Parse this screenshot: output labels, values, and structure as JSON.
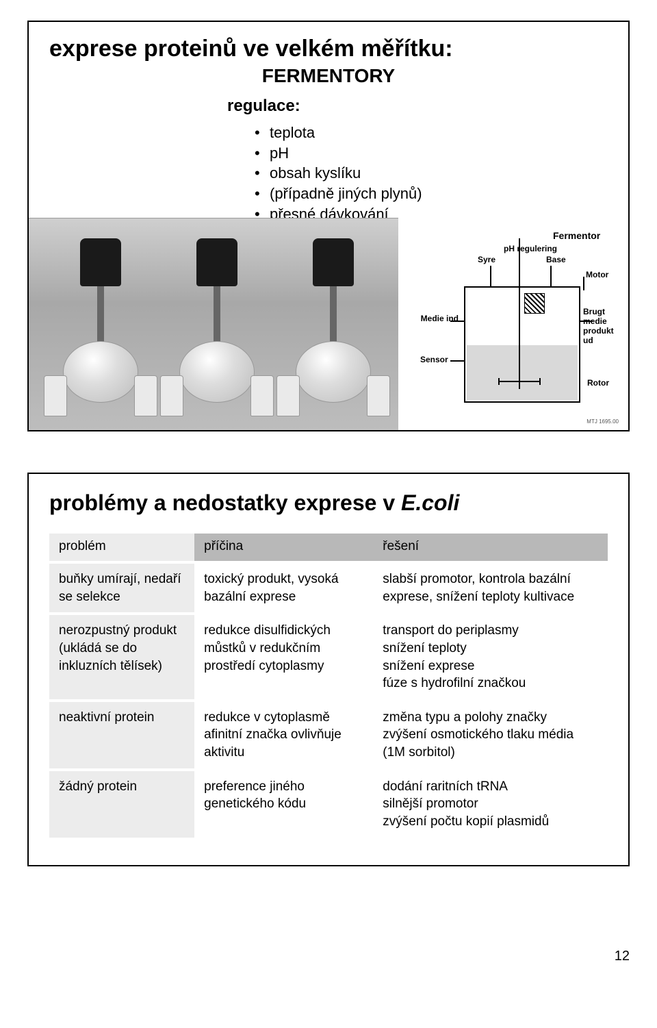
{
  "panel1": {
    "title": "exprese proteinů ve velkém měřítku:",
    "subtitle": "FERMENTORY",
    "regulace_label": "regulace:",
    "bullets": [
      "teplota",
      "pH",
      "obsah kyslíku",
      "(případně jiných plynů)",
      "přesné dávkování"
    ],
    "diagram": {
      "fermentor": "Fermentor",
      "syre": "Syre",
      "ph": "pH regulering",
      "base": "Base",
      "motor": "Motor",
      "medie": "Medie ind",
      "sensor": "Sensor",
      "brugt": "Brugt medie produkt ud",
      "rotor": "Rotor",
      "credit": "MTJ 1695.00"
    }
  },
  "panel2": {
    "title_prefix": "problémy a nedostatky exprese v ",
    "title_ital": "E.coli",
    "headers": {
      "c1": "problém",
      "c2": "příčina",
      "c3": "řešení"
    },
    "rows": [
      {
        "c1": "buňky umírají, nedaří se selekce",
        "c2": "toxický produkt, vysoká bazální exprese",
        "c3": "slabší promotor, kontrola bazální exprese, snížení teploty kultivace"
      },
      {
        "c1": "nerozpustný produkt (ukládá se do inkluzních tělísek)",
        "c2": "redukce disulfidických můstků v redukčním prostředí cytoplasmy",
        "c3": "transport do periplasmy\nsnížení teploty\nsnížení exprese\nfúze s hydrofilní značkou"
      },
      {
        "c1": "neaktivní protein",
        "c2": "redukce v cytoplasmě\nafinitní značka ovlivňuje aktivitu",
        "c3": "změna typu a polohy značky\nzvýšení osmotického tlaku média (1M sorbitol)"
      },
      {
        "c1": "žádný protein",
        "c2": "preference jiného genetického kódu",
        "c3": "dodání raritních tRNA\nsilnější promotor\nzvýšení počtu kopií plasmidů"
      }
    ]
  },
  "page_number": "12"
}
